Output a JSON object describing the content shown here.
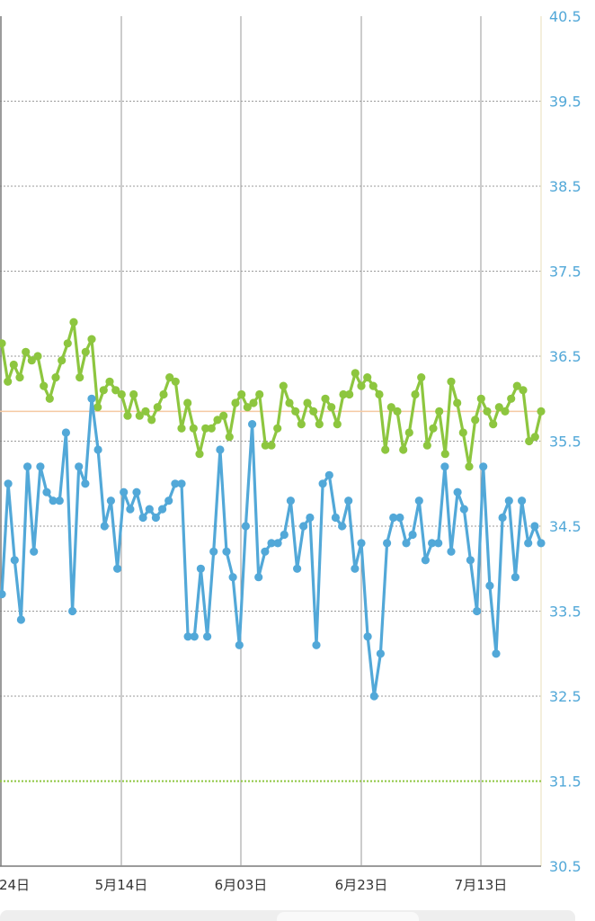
{
  "chart_data": {
    "type": "line",
    "y_axis": {
      "range": [
        30.5,
        40.5
      ],
      "tick_labels": [
        "40.5",
        "39.5",
        "38.5",
        "37.5",
        "36.5",
        "35.5",
        "34.5",
        "33.5",
        "32.5",
        "31.5",
        "30.5"
      ],
      "position": "right"
    },
    "x_axis": {
      "tick_labels": [
        "24日",
        "5月14日",
        "6月03日",
        "6月23日",
        "7月13日"
      ]
    },
    "grid": true,
    "reference_lines": [
      {
        "value": 35.85,
        "color": "#f5c9a3"
      },
      {
        "value": 31.5,
        "color": "#8dc63f",
        "style": "dotted"
      }
    ],
    "series": [
      {
        "color": "#8dc63f",
        "values": [
          36.65,
          36.2,
          36.4,
          36.25,
          36.55,
          36.45,
          36.5,
          36.15,
          36.0,
          36.25,
          36.45,
          36.65,
          36.9,
          36.25,
          36.55,
          36.7,
          35.9,
          36.1,
          36.2,
          36.1,
          36.05,
          35.8,
          36.05,
          35.8,
          35.85,
          35.75,
          35.9,
          36.05,
          36.25,
          36.2,
          35.65,
          35.95,
          35.65,
          35.35,
          35.65,
          35.65,
          35.75,
          35.8,
          35.55,
          35.95,
          36.05,
          35.9,
          35.95,
          36.05,
          35.45,
          35.45,
          35.65,
          36.15,
          35.95,
          35.85,
          35.7,
          35.95,
          35.85,
          35.7,
          36.0,
          35.9,
          35.7,
          36.05,
          36.05,
          36.3,
          36.15,
          36.25,
          36.15,
          36.05,
          35.4,
          35.9,
          35.85,
          35.4,
          35.6,
          36.05,
          36.25,
          35.45,
          35.65,
          35.85,
          35.35,
          36.2,
          35.95,
          35.6,
          35.2,
          35.75,
          36.0,
          35.85,
          35.7,
          35.9,
          35.85,
          36.0,
          36.15,
          36.1,
          35.5,
          35.55,
          35.85
        ]
      },
      {
        "color": "#52a8d8",
        "values": [
          33.7,
          35.0,
          34.1,
          33.4,
          35.2,
          34.2,
          35.2,
          34.9,
          34.8,
          34.8,
          35.6,
          33.5,
          35.2,
          35.0,
          36.0,
          35.4,
          34.5,
          34.8,
          34.0,
          34.9,
          34.7,
          34.9,
          34.6,
          34.7,
          34.6,
          34.7,
          34.8,
          35.0,
          35.0,
          33.2,
          33.2,
          34.0,
          33.2,
          34.2,
          35.4,
          34.2,
          33.9,
          33.1,
          34.5,
          35.7,
          33.9,
          34.2,
          34.3,
          34.3,
          34.4,
          34.8,
          34.0,
          34.5,
          34.6,
          33.1,
          35.0,
          35.1,
          34.6,
          34.5,
          34.8,
          34.0,
          34.3,
          33.2,
          32.5,
          33.0,
          34.3,
          34.6,
          34.6,
          34.3,
          34.4,
          34.8,
          34.1,
          34.3,
          34.3,
          35.2,
          34.2,
          34.9,
          34.7,
          34.1,
          33.5,
          35.2,
          33.8,
          33.0,
          34.6,
          34.8,
          33.9,
          34.8,
          34.3,
          34.5,
          34.3
        ]
      }
    ]
  }
}
